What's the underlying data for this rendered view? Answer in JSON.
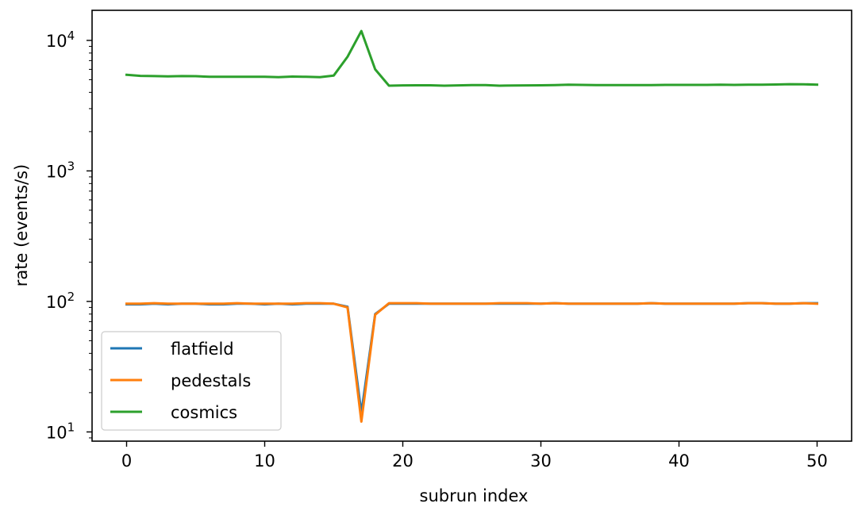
{
  "chart_data": {
    "type": "line",
    "title": "",
    "xlabel": "subrun index",
    "ylabel": "rate (events/s)",
    "yscale": "log",
    "xlim": [
      -2.5,
      52.5
    ],
    "ylim": [
      8.5,
      17000
    ],
    "x_ticks": [
      0,
      10,
      20,
      30,
      40,
      50
    ],
    "y_ticks": [
      {
        "value": 10,
        "base": "10",
        "exp": "1"
      },
      {
        "value": 100,
        "base": "10",
        "exp": "2"
      },
      {
        "value": 1000,
        "base": "10",
        "exp": "3"
      },
      {
        "value": 10000,
        "base": "10",
        "exp": "4"
      }
    ],
    "grid": false,
    "legend": "lower-left",
    "x": [
      0,
      1,
      2,
      3,
      4,
      5,
      6,
      7,
      8,
      9,
      10,
      11,
      12,
      13,
      14,
      15,
      16,
      17,
      18,
      19,
      20,
      21,
      22,
      23,
      24,
      25,
      26,
      27,
      28,
      29,
      30,
      31,
      32,
      33,
      34,
      35,
      36,
      37,
      38,
      39,
      40,
      41,
      42,
      43,
      44,
      45,
      46,
      47,
      48,
      49,
      50
    ],
    "series": [
      {
        "name": "flatfield",
        "color": "#1f77b4",
        "values": [
          95,
          95,
          96,
          95,
          96,
          96,
          95,
          95,
          96,
          96,
          95,
          96,
          95,
          96,
          96,
          96,
          91,
          14,
          80,
          96,
          96,
          96,
          96,
          96,
          96,
          96,
          96,
          96,
          96,
          96,
          96,
          97,
          96,
          96,
          96,
          96,
          96,
          96,
          97,
          96,
          96,
          96,
          96,
          96,
          96,
          97,
          97,
          96,
          96,
          97,
          97
        ]
      },
      {
        "name": "pedestals",
        "color": "#ff7f0e",
        "values": [
          96,
          96,
          97,
          96,
          96,
          96,
          96,
          96,
          97,
          96,
          96,
          96,
          96,
          97,
          97,
          96,
          90,
          12,
          79,
          97,
          97,
          97,
          96,
          96,
          96,
          96,
          96,
          97,
          97,
          97,
          96,
          97,
          96,
          96,
          96,
          96,
          96,
          96,
          97,
          96,
          96,
          96,
          96,
          96,
          96,
          97,
          97,
          96,
          96,
          97,
          96
        ]
      },
      {
        "name": "cosmics",
        "color": "#2ca02c",
        "values": [
          5450,
          5350,
          5330,
          5300,
          5330,
          5320,
          5260,
          5270,
          5270,
          5260,
          5270,
          5230,
          5280,
          5260,
          5230,
          5380,
          7500,
          11800,
          6000,
          4500,
          4520,
          4530,
          4530,
          4500,
          4520,
          4540,
          4540,
          4500,
          4510,
          4520,
          4530,
          4550,
          4570,
          4560,
          4550,
          4550,
          4550,
          4550,
          4550,
          4560,
          4560,
          4560,
          4560,
          4570,
          4560,
          4570,
          4580,
          4590,
          4620,
          4610,
          4580
        ]
      }
    ]
  }
}
